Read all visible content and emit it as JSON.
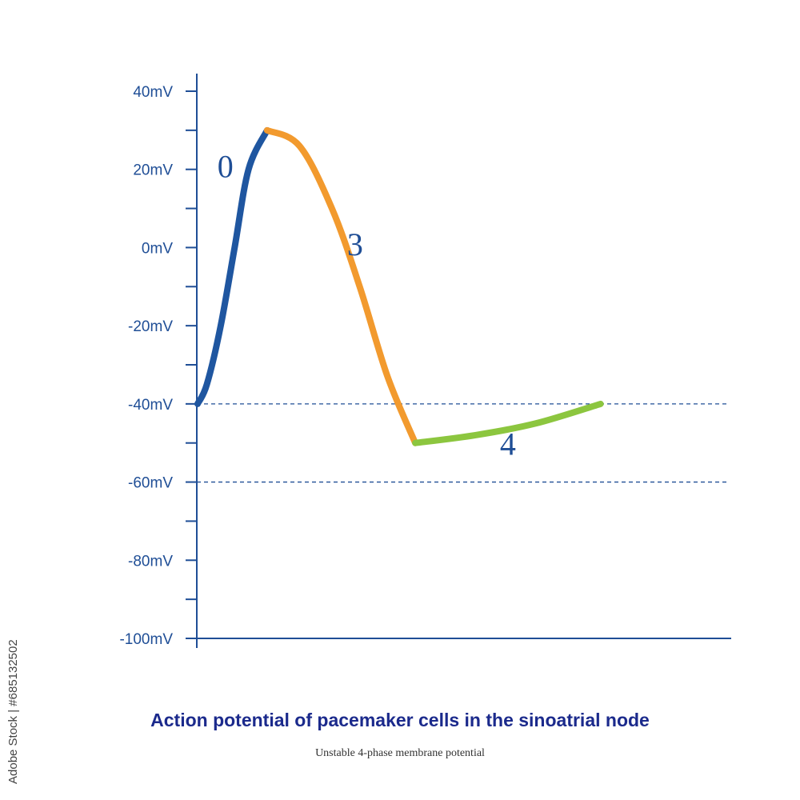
{
  "chart_data": {
    "type": "line",
    "title": "Action potential of pacemaker cells in the sinoatrial node",
    "subtitle": "Unstable 4-phase membrane potential",
    "ylim": [
      -100,
      40
    ],
    "y_ticks": [
      {
        "value": 40,
        "label": "40mV"
      },
      {
        "value": 20,
        "label": "20mV"
      },
      {
        "value": 0,
        "label": "0mV"
      },
      {
        "value": -20,
        "label": "-20mV"
      },
      {
        "value": -40,
        "label": "-40mV"
      },
      {
        "value": -60,
        "label": "-60mV"
      },
      {
        "value": -80,
        "label": "-80mV"
      },
      {
        "value": -100,
        "label": "-100mV"
      }
    ],
    "y_minor_ticks": [
      30,
      10,
      -10,
      -30,
      -50,
      -70,
      -90
    ],
    "reference_lines": [
      -40,
      -60
    ],
    "xlim": [
      0,
      1
    ],
    "phases": [
      {
        "label": "0",
        "color": "#1f56a0",
        "points": [
          [
            0,
            -40
          ],
          [
            0.02,
            -35
          ],
          [
            0.05,
            -20
          ],
          [
            0.08,
            0
          ],
          [
            0.11,
            20
          ],
          [
            0.15,
            30
          ]
        ],
        "label_at": [
          0.06,
          18
        ]
      },
      {
        "label": "3",
        "color": "#f29a2e",
        "points": [
          [
            0.15,
            30
          ],
          [
            0.22,
            26
          ],
          [
            0.29,
            10
          ],
          [
            0.35,
            -10
          ],
          [
            0.41,
            -33
          ],
          [
            0.47,
            -50
          ]
        ],
        "label_at": [
          0.34,
          -2
        ]
      },
      {
        "label": "4",
        "color": "#8cc63f",
        "points": [
          [
            0.47,
            -50
          ],
          [
            0.6,
            -48
          ],
          [
            0.73,
            -45
          ],
          [
            0.87,
            -40
          ]
        ],
        "label_at": [
          0.67,
          -53
        ]
      }
    ]
  },
  "side_id": "Adobe Stock | #685132502"
}
